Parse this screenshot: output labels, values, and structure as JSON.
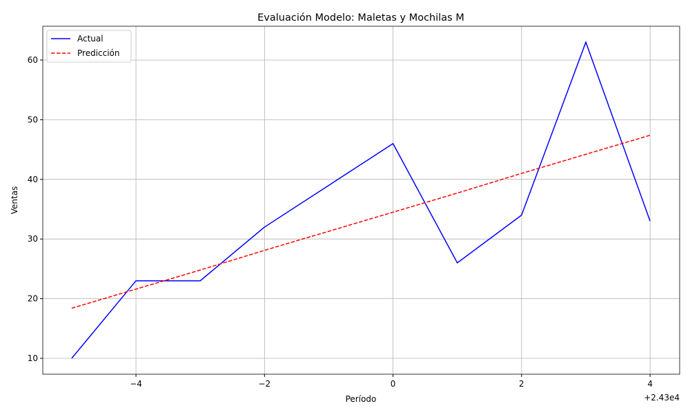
{
  "chart_data": {
    "type": "line",
    "title": "Evaluación Modelo: Maletas y Mochilas M",
    "xlabel": "Período",
    "ylabel": "Ventas",
    "x_offset_label": "+2.43e4",
    "x": [
      -5,
      -4,
      -3,
      -2,
      -1,
      0,
      1,
      2,
      3,
      4
    ],
    "series": [
      {
        "name": "Actual",
        "color": "#0000ff",
        "dash": "solid",
        "values": [
          10,
          23,
          23,
          32,
          39,
          46,
          26,
          34,
          63,
          33
        ]
      },
      {
        "name": "Predicción",
        "color": "#ff0000",
        "dash": "dashed",
        "values": [
          18.4,
          21.6,
          24.8,
          28.1,
          31.3,
          34.5,
          37.7,
          41.0,
          44.2,
          47.4
        ]
      }
    ],
    "xlim": [
      -5.45,
      4.46
    ],
    "ylim": [
      7.34,
      65.67
    ],
    "xticks": [
      {
        "value": -4,
        "label": "−4"
      },
      {
        "value": -2,
        "label": "−2"
      },
      0,
      2,
      4
    ],
    "yticks": [
      10,
      20,
      30,
      40,
      50,
      60
    ],
    "grid": true,
    "legend": "upper-left"
  }
}
